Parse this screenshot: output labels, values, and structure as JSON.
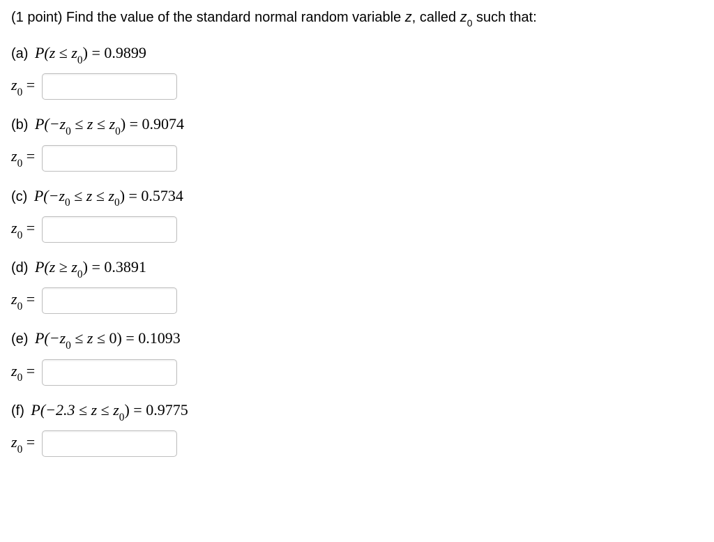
{
  "intro": {
    "prefix": "(1 point) Find the value of the standard normal random variable ",
    "var": "z",
    "mid": ", called ",
    "z0": "z",
    "suffix": " such that:"
  },
  "parts": {
    "a": {
      "label": "(a)",
      "lhs_open": "P(",
      "expr_z": "z",
      "cond": " ≤ ",
      "expr_z0": "z",
      "rhs_close": ") = 0.9899"
    },
    "b": {
      "label": "(b)",
      "lhs_open": "P(−",
      "expr_z0a": "z",
      "mid1": " ≤ ",
      "expr_z": "z",
      "mid2": " ≤ ",
      "expr_z0b": "z",
      "rhs_close": ") = 0.9074"
    },
    "c": {
      "label": "(c)",
      "lhs_open": "P(−",
      "expr_z0a": "z",
      "mid1": " ≤ ",
      "expr_z": "z",
      "mid2": " ≤ ",
      "expr_z0b": "z",
      "rhs_close": ") = 0.5734"
    },
    "d": {
      "label": "(d)",
      "lhs_open": "P(",
      "expr_z": "z",
      "cond": " ≥ ",
      "expr_z0": "z",
      "rhs_close": ") = 0.3891"
    },
    "e": {
      "label": "(e)",
      "lhs_open": "P(−",
      "expr_z0a": "z",
      "mid1": " ≤ ",
      "expr_z": "z",
      "mid2": " ≤ 0) = 0.1093"
    },
    "f": {
      "label": "(f)",
      "lhs_open": "P(−2.3 ≤ ",
      "expr_z": "z",
      "mid2": " ≤ ",
      "expr_z0b": "z",
      "rhs_close": ") = 0.9775"
    }
  },
  "answer_prefix_z": "z",
  "answer_eq": " ="
}
